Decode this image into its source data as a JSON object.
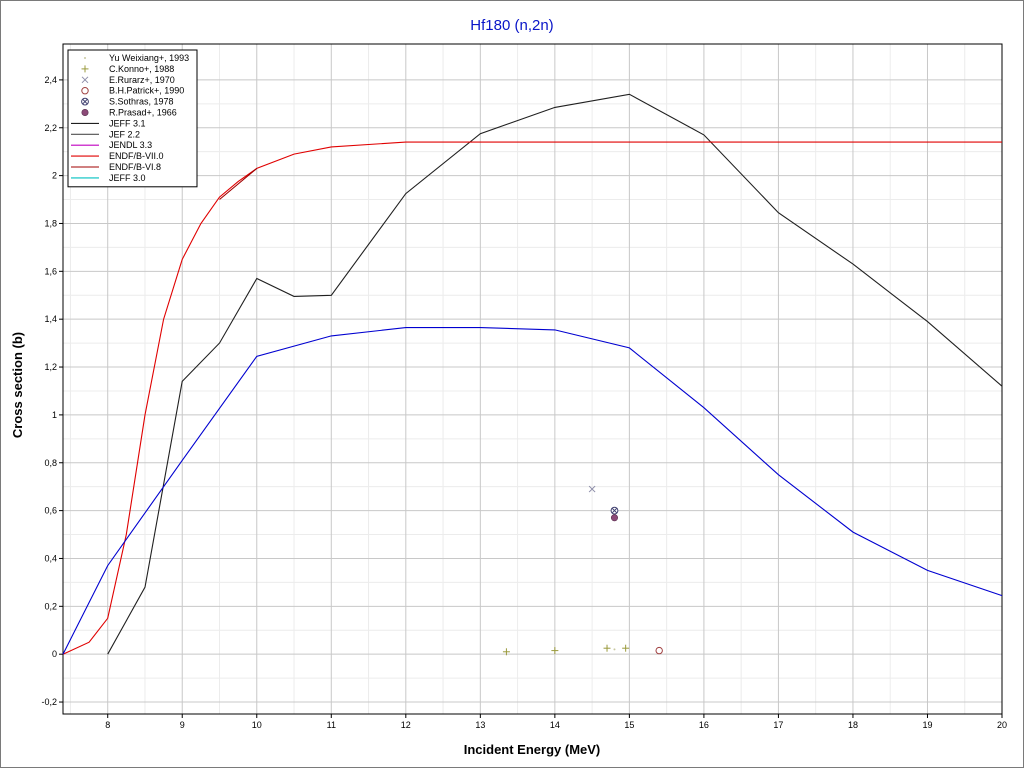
{
  "chart_data": {
    "type": "line",
    "title": "Hf180 (n,2n)",
    "xlabel": "Incident Energy (MeV)",
    "ylabel": "Cross section (b)",
    "xlim": [
      7.4,
      20
    ],
    "ylim": [
      -0.25,
      2.55
    ],
    "x_ticks": [
      {
        "value": 8,
        "label": "8"
      },
      {
        "value": 9,
        "label": "9"
      },
      {
        "value": 10,
        "label": "10"
      },
      {
        "value": 11,
        "label": "11"
      },
      {
        "value": 12,
        "label": "12"
      },
      {
        "value": 13,
        "label": "13"
      },
      {
        "value": 14,
        "label": "14"
      },
      {
        "value": 15,
        "label": "15"
      },
      {
        "value": 16,
        "label": "16"
      },
      {
        "value": 17,
        "label": "17"
      },
      {
        "value": 18,
        "label": "18"
      },
      {
        "value": 19,
        "label": "19"
      },
      {
        "value": 20,
        "label": "20"
      }
    ],
    "y_ticks": [
      {
        "value": -0.2,
        "label": "-0,2"
      },
      {
        "value": 0,
        "label": "0"
      },
      {
        "value": 0.2,
        "label": "0,2"
      },
      {
        "value": 0.4,
        "label": "0,4"
      },
      {
        "value": 0.6,
        "label": "0,6"
      },
      {
        "value": 0.8,
        "label": "0,8"
      },
      {
        "value": 1.0,
        "label": "1"
      },
      {
        "value": 1.2,
        "label": "1,2"
      },
      {
        "value": 1.4,
        "label": "1,4"
      },
      {
        "value": 1.6,
        "label": "1,6"
      },
      {
        "value": 1.8,
        "label": "1,8"
      },
      {
        "value": 2.0,
        "label": "2"
      },
      {
        "value": 2.2,
        "label": "2,2"
      },
      {
        "value": 2.4,
        "label": "2,4"
      }
    ],
    "grid": true,
    "legend_position": "top-left",
    "scatter_series": [
      {
        "name": "Yu Weixiang+, 1993",
        "marker": "dot",
        "color": "#c8c8a0",
        "points": [
          [
            14.8,
            0.02
          ]
        ]
      },
      {
        "name": "C.Konno+, 1988",
        "marker": "plus",
        "color": "#9a9a3c",
        "points": [
          [
            13.35,
            0.01
          ],
          [
            14.0,
            0.015
          ],
          [
            14.7,
            0.025
          ],
          [
            14.95,
            0.025
          ]
        ]
      },
      {
        "name": "E.Rurarz+, 1970",
        "marker": "x",
        "color": "#8c8ca8",
        "points": [
          [
            14.5,
            0.69
          ]
        ]
      },
      {
        "name": "B.H.Patrick+, 1990",
        "marker": "circle-open",
        "color": "#a04040",
        "points": [
          [
            15.4,
            0.015
          ]
        ]
      },
      {
        "name": "S.Sothras, 1978",
        "marker": "circle-x",
        "color": "#404070",
        "points": [
          [
            14.8,
            0.6
          ]
        ]
      },
      {
        "name": "R.Prasad+, 1966",
        "marker": "dot-filled",
        "color": "#8c4a78",
        "points": [
          [
            14.8,
            0.57
          ]
        ]
      }
    ],
    "line_series": [
      {
        "name": "JEFF 3.1",
        "color": "#202020",
        "points": [
          [
            8.0,
            0.0
          ],
          [
            8.5,
            0.28
          ],
          [
            9.0,
            1.14
          ],
          [
            9.5,
            1.3
          ],
          [
            10.0,
            1.57
          ],
          [
            10.5,
            1.495
          ],
          [
            11.0,
            1.5
          ],
          [
            12.0,
            1.925
          ],
          [
            13.0,
            2.175
          ],
          [
            14.0,
            2.285
          ],
          [
            15.0,
            2.34
          ],
          [
            16.0,
            2.17
          ],
          [
            17.0,
            1.845
          ],
          [
            18.0,
            1.63
          ],
          [
            19.0,
            1.39
          ],
          [
            20.0,
            1.12
          ]
        ]
      },
      {
        "name": "JEF 2.2",
        "color": "#505050",
        "points": []
      },
      {
        "name": "JENDL 3.3",
        "color": "#c000c0",
        "points": []
      },
      {
        "name": "ENDF/B-VII.0",
        "color": "#e00000",
        "points": [
          [
            7.4,
            0.0
          ],
          [
            7.75,
            0.05
          ],
          [
            8.0,
            0.15
          ],
          [
            8.25,
            0.5
          ],
          [
            8.5,
            1.0
          ],
          [
            8.75,
            1.4
          ],
          [
            9.0,
            1.65
          ],
          [
            9.25,
            1.8
          ],
          [
            9.5,
            1.91
          ],
          [
            9.75,
            1.975
          ],
          [
            10.0,
            2.03
          ],
          [
            10.5,
            2.09
          ],
          [
            11.0,
            2.12
          ],
          [
            12.0,
            2.14
          ],
          [
            13.0,
            2.14
          ],
          [
            14.0,
            2.14
          ],
          [
            16.0,
            2.14
          ],
          [
            18.0,
            2.14
          ],
          [
            20.0,
            2.14
          ]
        ]
      },
      {
        "name": "ENDF/B-VI.8",
        "color": "#a00000",
        "points": [
          [
            9.5,
            1.9
          ],
          [
            9.75,
            1.965
          ],
          [
            10.0,
            2.03
          ]
        ]
      },
      {
        "name": "JEFF 3.0",
        "color": "#00c0c0",
        "points": []
      },
      {
        "name": "",
        "color": "#0000d0",
        "points": [
          [
            7.4,
            0.0
          ],
          [
            8.0,
            0.37
          ],
          [
            9.0,
            0.81
          ],
          [
            10.0,
            1.245
          ],
          [
            11.0,
            1.33
          ],
          [
            12.0,
            1.365
          ],
          [
            13.0,
            1.365
          ],
          [
            14.0,
            1.355
          ],
          [
            15.0,
            1.28
          ],
          [
            16.0,
            1.03
          ],
          [
            17.0,
            0.75
          ],
          [
            18.0,
            0.51
          ],
          [
            19.0,
            0.35
          ],
          [
            20.0,
            0.245
          ]
        ]
      }
    ]
  }
}
